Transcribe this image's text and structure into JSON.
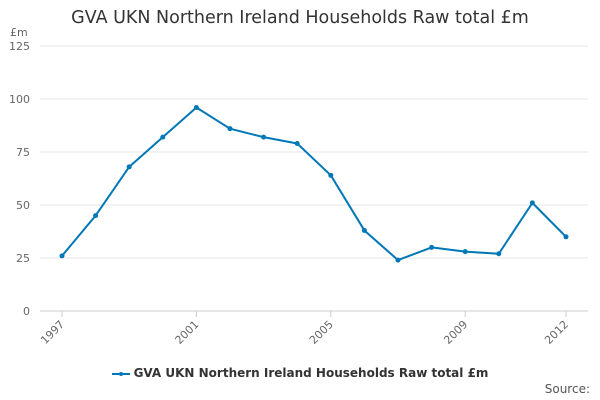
{
  "chart_data": {
    "type": "line",
    "title": "GVA UKN Northern Ireland Households Raw total £m",
    "ylabel": "£m",
    "xlabel": "",
    "ylim": [
      0,
      125
    ],
    "yticks": [
      0,
      25,
      50,
      75,
      100,
      125
    ],
    "xticks": [
      "1997",
      "2001",
      "2005",
      "2009",
      "2012"
    ],
    "x": [
      1997,
      1998,
      1999,
      2000,
      2001,
      2002,
      2003,
      2004,
      2005,
      2006,
      2007,
      2008,
      2009,
      2010,
      2011,
      2012
    ],
    "grid": true,
    "legend_position": "bottom",
    "series": [
      {
        "name": "GVA UKN Northern Ireland Households Raw total £m",
        "color": "#0077b6",
        "values": [
          26,
          45,
          68,
          82,
          96,
          86,
          82,
          79,
          64,
          38,
          24,
          30,
          28,
          27,
          51,
          35
        ]
      }
    ]
  },
  "source_label": "Source:"
}
